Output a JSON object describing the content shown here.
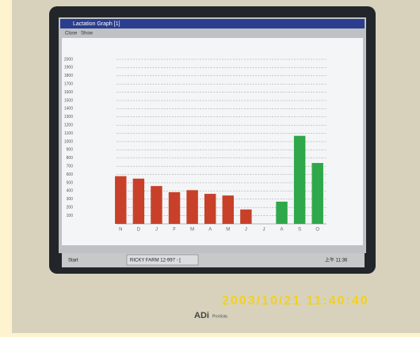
{
  "window_title": "Lactation Graph [1]",
  "menu": [
    "Close",
    "Show"
  ],
  "taskbar": {
    "start": "Start",
    "task": "RICKY FARM 12-997 - [",
    "clock": "上午 11:36"
  },
  "timestamp": "2003/10/21  11:40:40",
  "brand": {
    "name": "ADi",
    "model": "ProVista"
  },
  "chart_data": {
    "type": "bar",
    "categories": [
      "N",
      "D",
      "J",
      "F",
      "M",
      "A",
      "M",
      "J",
      "J",
      "A",
      "S",
      "O"
    ],
    "values": [
      580,
      550,
      460,
      385,
      410,
      365,
      345,
      175,
      null,
      270,
      1070,
      740
    ],
    "colors": [
      "#c8402a",
      "#c8402a",
      "#c8402a",
      "#c8402a",
      "#c8402a",
      "#c8402a",
      "#c8402a",
      "#c8402a",
      "#c8402a",
      "#2ea84a",
      "#2ea84a",
      "#2ea84a"
    ],
    "ylim": [
      0,
      2000
    ],
    "yticks": [
      100,
      200,
      300,
      400,
      500,
      600,
      700,
      800,
      900,
      1000,
      1100,
      1200,
      1300,
      1400,
      1500,
      1600,
      1700,
      1800,
      1900,
      2000
    ],
    "grid": true
  }
}
